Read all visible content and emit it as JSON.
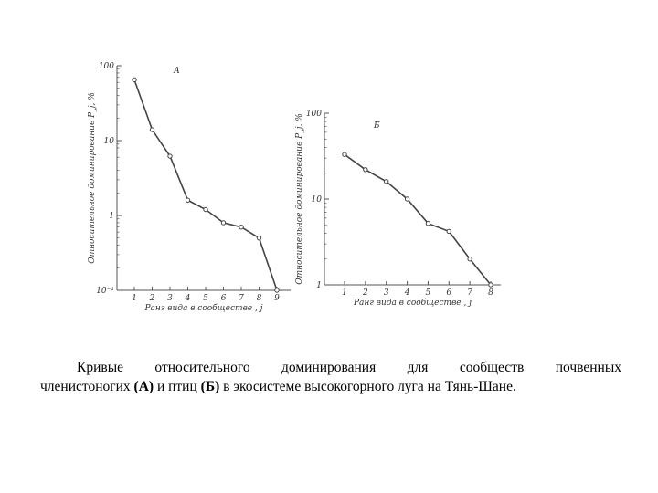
{
  "chart_data": [
    {
      "type": "line",
      "panel_label": "А",
      "ylabel": "Относительное доминирование P_j, %",
      "xlabel": "Ранг вида в сообществе , j",
      "yscale": "log",
      "ylim": [
        0.1,
        100
      ],
      "y_tick_labels": [
        "10⁻¹",
        "1",
        "10",
        "100"
      ],
      "y_tick_values": [
        0.1,
        1,
        10,
        100
      ],
      "categories": [
        "1",
        "2",
        "3",
        "4",
        "5",
        "6",
        "7",
        "8",
        "9"
      ],
      "x": [
        1,
        2,
        3,
        4,
        5,
        6,
        7,
        8,
        9
      ],
      "values": [
        65,
        14,
        6.2,
        1.6,
        1.2,
        0.8,
        0.7,
        0.5,
        0.1
      ],
      "grid": false,
      "line_color": "#444444",
      "marker": "open-circle"
    },
    {
      "type": "line",
      "panel_label": "Б",
      "ylabel": "Относительное доминирование P_j, %",
      "xlabel": "Ранг вида в сообществе , j",
      "yscale": "log",
      "ylim": [
        1,
        100
      ],
      "y_tick_labels": [
        "1",
        "10",
        "100"
      ],
      "y_tick_values": [
        1,
        10,
        100
      ],
      "categories": [
        "1",
        "2",
        "3",
        "4",
        "5",
        "6",
        "7",
        "8"
      ],
      "x": [
        1,
        2,
        3,
        4,
        5,
        6,
        7,
        8
      ],
      "values": [
        33,
        22,
        16,
        10,
        5.2,
        4.2,
        2.0,
        1.0
      ],
      "grid": false,
      "line_color": "#444444",
      "marker": "open-circle"
    }
  ],
  "caption": {
    "line1": "Кривые относительного доминирования для сообществ почвенных",
    "line2_before_a": "членистоногих ",
    "label_a": "(А)",
    "line2_middle": " и птиц ",
    "label_b": "(Б)",
    "line2_after": " в экосистеме  высокогорного луга на Тянь-Шане."
  }
}
